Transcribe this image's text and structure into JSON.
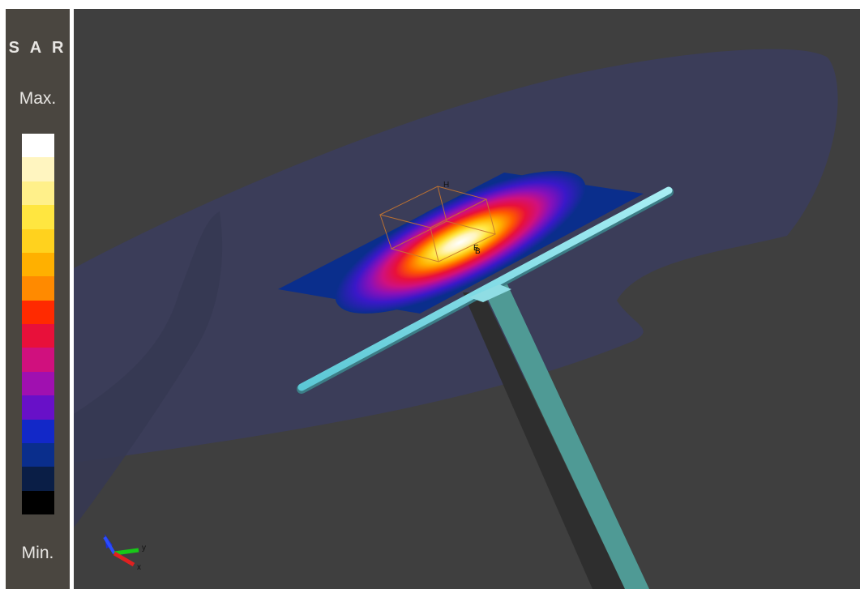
{
  "legend": {
    "title": "S A R",
    "max_label": "Max.",
    "min_label": "Min.",
    "colors": [
      "#ffffff",
      "#fff5c0",
      "#fff08a",
      "#ffe640",
      "#ffd21e",
      "#ffb000",
      "#ff8a00",
      "#ff2a00",
      "#e8103a",
      "#d0107e",
      "#a010b0",
      "#6810c8",
      "#1228c8",
      "#0a2e8c",
      "#0a1e46",
      "#000000"
    ]
  },
  "viewport": {
    "background": "#3f3f3f",
    "markers": {
      "h_label": "H",
      "e_label": "E",
      "b_label": "B"
    },
    "axes": {
      "x_label": "x",
      "y_label": "y"
    }
  }
}
